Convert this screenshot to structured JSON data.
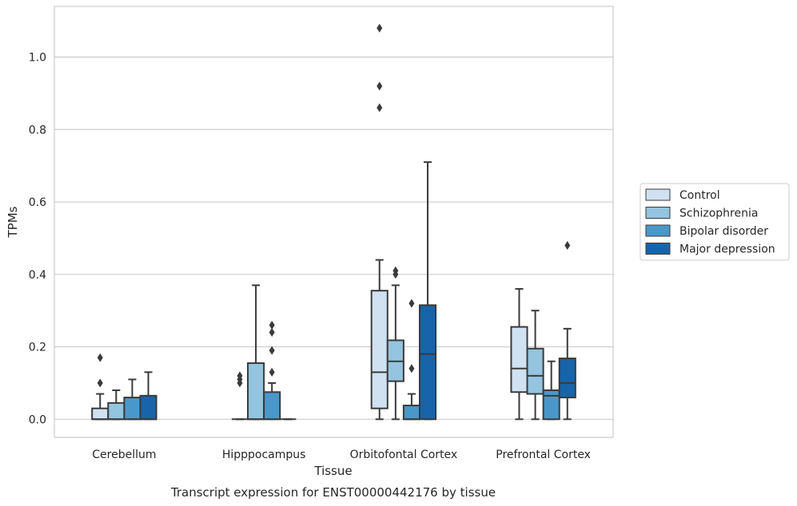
{
  "chart_data": {
    "type": "box",
    "title": "",
    "caption": "Transcript expression for ENST00000442176 by tissue",
    "xlabel": "Tissue",
    "ylabel": "TPMs",
    "ylim": [
      -0.05,
      1.14
    ],
    "yticks": [
      0.0,
      0.2,
      0.4,
      0.6,
      0.8,
      1.0
    ],
    "ytick_labels": [
      "0.0",
      "0.2",
      "0.4",
      "0.6",
      "0.8",
      "1.0"
    ],
    "grid": "horizontal",
    "legend_position": "right",
    "categories": [
      "Cerebellum",
      "Hipppocampus",
      "Orbitofontal Cortex",
      "Prefrontal Cortex"
    ],
    "series": [
      {
        "name": "Control",
        "color": "#d0e1f2",
        "boxes": [
          {
            "whislo": 0.0,
            "q1": 0.0,
            "med": 0.0,
            "q3": 0.03,
            "whishi": 0.07,
            "fliers": [
              0.1,
              0.17
            ]
          },
          {
            "whislo": 0.0,
            "q1": 0.0,
            "med": 0.0,
            "q3": 0.0,
            "whishi": 0.0,
            "fliers": [
              0.1,
              0.11,
              0.12
            ]
          },
          {
            "whislo": 0.0,
            "q1": 0.03,
            "med": 0.13,
            "q3": 0.355,
            "whishi": 0.44,
            "fliers": [
              0.86,
              0.92,
              1.08
            ]
          },
          {
            "whislo": 0.0,
            "q1": 0.075,
            "med": 0.14,
            "q3": 0.255,
            "whishi": 0.36,
            "fliers": []
          }
        ]
      },
      {
        "name": "Schizophrenia",
        "color": "#94c4df",
        "boxes": [
          {
            "whislo": 0.0,
            "q1": 0.0,
            "med": 0.0,
            "q3": 0.045,
            "whishi": 0.08,
            "fliers": []
          },
          {
            "whislo": 0.0,
            "q1": 0.0,
            "med": 0.0,
            "q3": 0.155,
            "whishi": 0.37,
            "fliers": []
          },
          {
            "whislo": 0.0,
            "q1": 0.105,
            "med": 0.16,
            "q3": 0.218,
            "whishi": 0.37,
            "fliers": [
              0.4,
              0.41
            ]
          },
          {
            "whislo": 0.0,
            "q1": 0.07,
            "med": 0.12,
            "q3": 0.195,
            "whishi": 0.3,
            "fliers": []
          }
        ]
      },
      {
        "name": "Bipolar disorder",
        "color": "#4a98c9",
        "boxes": [
          {
            "whislo": 0.0,
            "q1": 0.0,
            "med": 0.0,
            "q3": 0.06,
            "whishi": 0.11,
            "fliers": []
          },
          {
            "whislo": 0.0,
            "q1": 0.0,
            "med": 0.0,
            "q3": 0.075,
            "whishi": 0.1,
            "fliers": [
              0.13,
              0.19,
              0.24,
              0.26
            ]
          },
          {
            "whislo": 0.0,
            "q1": 0.0,
            "med": 0.0,
            "q3": 0.038,
            "whishi": 0.07,
            "fliers": [
              0.14,
              0.32
            ]
          },
          {
            "whislo": 0.0,
            "q1": 0.0,
            "med": 0.065,
            "q3": 0.08,
            "whishi": 0.16,
            "fliers": []
          }
        ]
      },
      {
        "name": "Major depression",
        "color": "#1764ab",
        "boxes": [
          {
            "whislo": 0.0,
            "q1": 0.0,
            "med": 0.0,
            "q3": 0.065,
            "whishi": 0.13,
            "fliers": []
          },
          {
            "whislo": 0.0,
            "q1": 0.0,
            "med": 0.0,
            "q3": 0.0,
            "whishi": 0.0,
            "fliers": []
          },
          {
            "whislo": 0.0,
            "q1": 0.0,
            "med": 0.18,
            "q3": 0.315,
            "whishi": 0.71,
            "fliers": []
          },
          {
            "whislo": 0.0,
            "q1": 0.06,
            "med": 0.1,
            "q3": 0.168,
            "whishi": 0.25,
            "fliers": [
              0.48
            ]
          }
        ]
      }
    ]
  }
}
